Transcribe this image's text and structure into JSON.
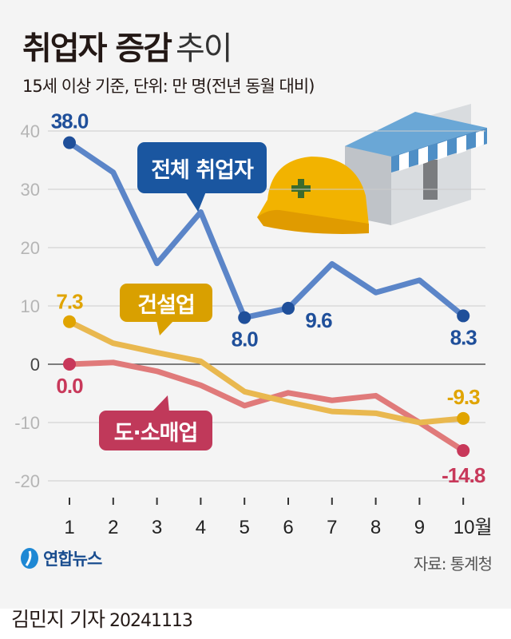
{
  "header": {
    "title_bold": "취업자 증감",
    "title_light": "추이",
    "subtitle": "15세 이상 기준, 단위: 만 명(전년 동월 대비)"
  },
  "chart_data": {
    "type": "line",
    "title": "취업자 증감 추이",
    "subtitle": "15세 이상 기준, 단위: 만 명(전년 동월 대비)",
    "categories": [
      "1",
      "2",
      "3",
      "4",
      "5",
      "6",
      "7",
      "8",
      "9",
      "10월"
    ],
    "ylim": [
      -20,
      40
    ],
    "yticks": [
      "40",
      "30",
      "20",
      "10",
      "0",
      "-10",
      "-20"
    ],
    "ytick_values": [
      40,
      30,
      20,
      10,
      0,
      -10,
      -20
    ],
    "grid": true,
    "series": [
      {
        "name": "전체 취업자",
        "values": [
          38.0,
          32.9,
          17.3,
          26.1,
          8.0,
          9.6,
          17.2,
          12.3,
          14.4,
          8.3
        ],
        "line_color": "#5b85c8",
        "dot_color": "#1f4f9a",
        "box_color": "#1a56a0",
        "labels": [
          {
            "index": 0,
            "text": "38.0"
          },
          {
            "index": 4,
            "text": "8.0"
          },
          {
            "index": 5,
            "text": "9.6"
          },
          {
            "index": 9,
            "text": "8.3"
          }
        ]
      },
      {
        "name": "건설업",
        "values": [
          7.3,
          3.6,
          2.0,
          0.5,
          -4.7,
          -6.5,
          -8.1,
          -8.4,
          -10.0,
          -9.3
        ],
        "line_color": "#e9b84f",
        "dot_color": "#e0a400",
        "box_color": "#d9a000",
        "labels": [
          {
            "index": 0,
            "text": "7.3"
          },
          {
            "index": 9,
            "text": "-9.3"
          }
        ]
      },
      {
        "name": "도·소매업",
        "values": [
          0.0,
          0.3,
          -1.2,
          -3.6,
          -7.1,
          -4.9,
          -6.2,
          -5.4,
          -10.0,
          -14.8
        ],
        "line_color": "#e07a7a",
        "dot_color": "#c8385a",
        "box_color": "#c0395a",
        "labels": [
          {
            "index": 0,
            "text": "0.0"
          },
          {
            "index": 9,
            "text": "-14.8"
          }
        ]
      }
    ],
    "annotations": [
      "전체 취업자",
      "건설업",
      "도·소매업"
    ]
  },
  "footer": {
    "logo_text": "연합뉴스",
    "source": "자료: 통계청",
    "reporter": "김민지 기자",
    "date": "20241113"
  }
}
